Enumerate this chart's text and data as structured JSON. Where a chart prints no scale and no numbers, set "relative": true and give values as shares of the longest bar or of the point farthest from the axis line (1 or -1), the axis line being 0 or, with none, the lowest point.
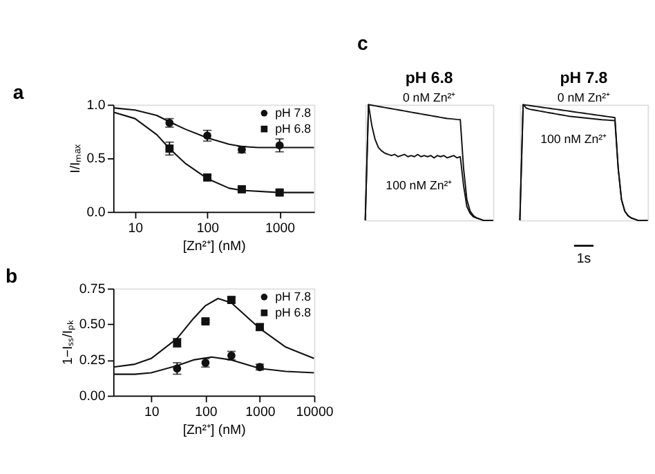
{
  "chart_data": [
    {
      "type": "line",
      "title": "a",
      "xlabel": "[Zn²⁺] (nM)",
      "ylabel": "I/Iₘₐₓ",
      "log": "x",
      "xlim": [
        5,
        3000
      ],
      "xticks": [
        10,
        100,
        1000
      ],
      "ylim": [
        0,
        1.0
      ],
      "yticks": [
        {
          "value": 0,
          "label": "0.0"
        },
        {
          "value": 0.5,
          "label": "0.5"
        },
        {
          "value": 1.0,
          "label": "1.0"
        }
      ],
      "legend": "top right",
      "grid": false,
      "x": [
        30,
        100,
        300,
        1000
      ],
      "series": [
        {
          "name": "pH 7.8",
          "type": "scatter",
          "marker": "circle",
          "color": "#111111",
          "values": [
            0.83,
            0.71,
            0.58,
            0.62
          ],
          "errors": [
            0.04,
            0.05,
            0.03,
            0.06
          ]
        },
        {
          "name": "pH 6.8",
          "type": "scatter",
          "marker": "square",
          "color": "#111111",
          "values": [
            0.59,
            0.32,
            0.21,
            0.18
          ],
          "errors": [
            0.06,
            0.02,
            0.02,
            0.02
          ]
        },
        {
          "type": "line",
          "color": "#111111",
          "x": [
            5,
            10,
            20,
            30,
            50,
            100,
            200,
            300,
            500,
            1000,
            3000
          ],
          "values": [
            0.97,
            0.95,
            0.9,
            0.84,
            0.77,
            0.69,
            0.63,
            0.61,
            0.6,
            0.6,
            0.6
          ]
        },
        {
          "type": "line",
          "color": "#111111",
          "x": [
            5,
            10,
            20,
            30,
            50,
            100,
            200,
            300,
            1000,
            3000
          ],
          "values": [
            0.93,
            0.87,
            0.72,
            0.59,
            0.45,
            0.31,
            0.22,
            0.2,
            0.18,
            0.18
          ]
        }
      ]
    },
    {
      "type": "line",
      "title": "b",
      "xlabel": "[Zn²⁺] (nM)",
      "ylabel": "1−Iₛₛ/Iₚₖ",
      "log": "x",
      "xlim": [
        2,
        10000
      ],
      "xticks": [
        10,
        100,
        1000,
        10000
      ],
      "ylim": [
        0,
        0.75
      ],
      "yticks": [
        {
          "value": 0,
          "label": "0.00"
        },
        {
          "value": 0.25,
          "label": "0.25"
        },
        {
          "value": 0.5,
          "label": "0.50"
        },
        {
          "value": 0.75,
          "label": "0.75"
        }
      ],
      "legend": "top right",
      "grid": false,
      "x": [
        30,
        100,
        300,
        1000
      ],
      "series": [
        {
          "name": "pH 7.8",
          "type": "scatter",
          "marker": "circle",
          "color": "#111111",
          "values": [
            0.19,
            0.23,
            0.28,
            0.2
          ],
          "errors": [
            0.04,
            0.03,
            0.03,
            0.02
          ]
        },
        {
          "name": "pH 6.8",
          "type": "scatter",
          "marker": "square",
          "color": "#111111",
          "values": [
            0.37,
            0.52,
            0.67,
            0.48
          ],
          "errors": [
            0.03,
            0.01,
            0.02,
            0.02
          ]
        },
        {
          "type": "line",
          "color": "#111111",
          "x": [
            2,
            5,
            10,
            30,
            60,
            130,
            300,
            1000,
            3000,
            10000
          ],
          "values": [
            0.15,
            0.15,
            0.16,
            0.21,
            0.25,
            0.27,
            0.25,
            0.19,
            0.17,
            0.16
          ]
        },
        {
          "type": "line",
          "color": "#111111",
          "x": [
            2,
            5,
            10,
            30,
            60,
            100,
            170,
            300,
            1000,
            3000,
            10000
          ],
          "values": [
            0.2,
            0.22,
            0.26,
            0.4,
            0.54,
            0.63,
            0.68,
            0.65,
            0.47,
            0.34,
            0.26
          ]
        }
      ]
    },
    {
      "type": "line",
      "title": "c",
      "subtitle": "pH 6.8",
      "relative": true,
      "annotations": [
        "0 nM Zn²⁺",
        "100 nM Zn²⁺"
      ],
      "categories": [
        null,
        null,
        null,
        null,
        null,
        null,
        null,
        null,
        null,
        null,
        null,
        null,
        null,
        null,
        null,
        null,
        null,
        null,
        null,
        null,
        null,
        null,
        null,
        null,
        null,
        null,
        null,
        null,
        null,
        null,
        null,
        null,
        null,
        null,
        null,
        null,
        null,
        null,
        null,
        null
      ],
      "series": [
        {
          "color": "#111111",
          "values": [
            0,
            1.0,
            0.995,
            0.99,
            0.985,
            0.98,
            0.975,
            0.97,
            0.965,
            0.96,
            0.955,
            0.95,
            0.945,
            0.94,
            0.935,
            0.93,
            0.925,
            0.92,
            0.915,
            0.91,
            0.905,
            0.9,
            0.895,
            0.89,
            0.885,
            0.88,
            0.878,
            0.875,
            0.872,
            0.87,
            0.45,
            0.18,
            0.08,
            0.04,
            0.02,
            0.01,
            0,
            0,
            0,
            0
          ]
        },
        {
          "color": "#111111",
          "values": [
            0,
            1.0,
            0.82,
            0.7,
            0.63,
            0.6,
            0.58,
            0.57,
            0.56,
            0.57,
            0.55,
            0.56,
            0.57,
            0.55,
            0.56,
            0.55,
            0.57,
            0.55,
            0.56,
            0.55,
            0.56,
            0.54,
            0.56,
            0.55,
            0.56,
            0.54,
            0.55,
            0.56,
            0.54,
            0.55,
            0.3,
            0.12,
            0.06,
            0.03,
            0.02,
            0.01,
            0,
            0,
            0,
            0
          ]
        }
      ]
    },
    {
      "type": "line",
      "subtitle": "pH 7.8",
      "relative": true,
      "annotations": [
        "0 nM Zn²⁺",
        "100 nM Zn²⁺",
        "1s"
      ],
      "categories": [
        null,
        null,
        null,
        null,
        null,
        null,
        null,
        null,
        null,
        null,
        null,
        null,
        null,
        null,
        null,
        null,
        null,
        null,
        null,
        null,
        null,
        null,
        null,
        null,
        null,
        null,
        null,
        null,
        null,
        null,
        null,
        null,
        null,
        null,
        null,
        null,
        null,
        null,
        null,
        null
      ],
      "series": [
        {
          "color": "#111111",
          "values": [
            0,
            1.0,
            0.996,
            0.992,
            0.988,
            0.984,
            0.98,
            0.976,
            0.972,
            0.968,
            0.964,
            0.96,
            0.956,
            0.952,
            0.948,
            0.944,
            0.94,
            0.936,
            0.932,
            0.928,
            0.924,
            0.92,
            0.916,
            0.912,
            0.908,
            0.904,
            0.9,
            0.896,
            0.892,
            0.888,
            0.45,
            0.18,
            0.08,
            0.04,
            0.02,
            0.01,
            0,
            0,
            0,
            0
          ]
        },
        {
          "color": "#111111",
          "values": [
            0,
            1.0,
            0.97,
            0.96,
            0.955,
            0.95,
            0.945,
            0.94,
            0.935,
            0.93,
            0.925,
            0.92,
            0.915,
            0.91,
            0.905,
            0.9,
            0.897,
            0.894,
            0.891,
            0.888,
            0.885,
            0.882,
            0.879,
            0.876,
            0.873,
            0.87,
            0.868,
            0.866,
            0.864,
            0.862,
            0.45,
            0.18,
            0.08,
            0.04,
            0.02,
            0.01,
            0,
            0,
            0,
            0
          ]
        }
      ]
    }
  ]
}
